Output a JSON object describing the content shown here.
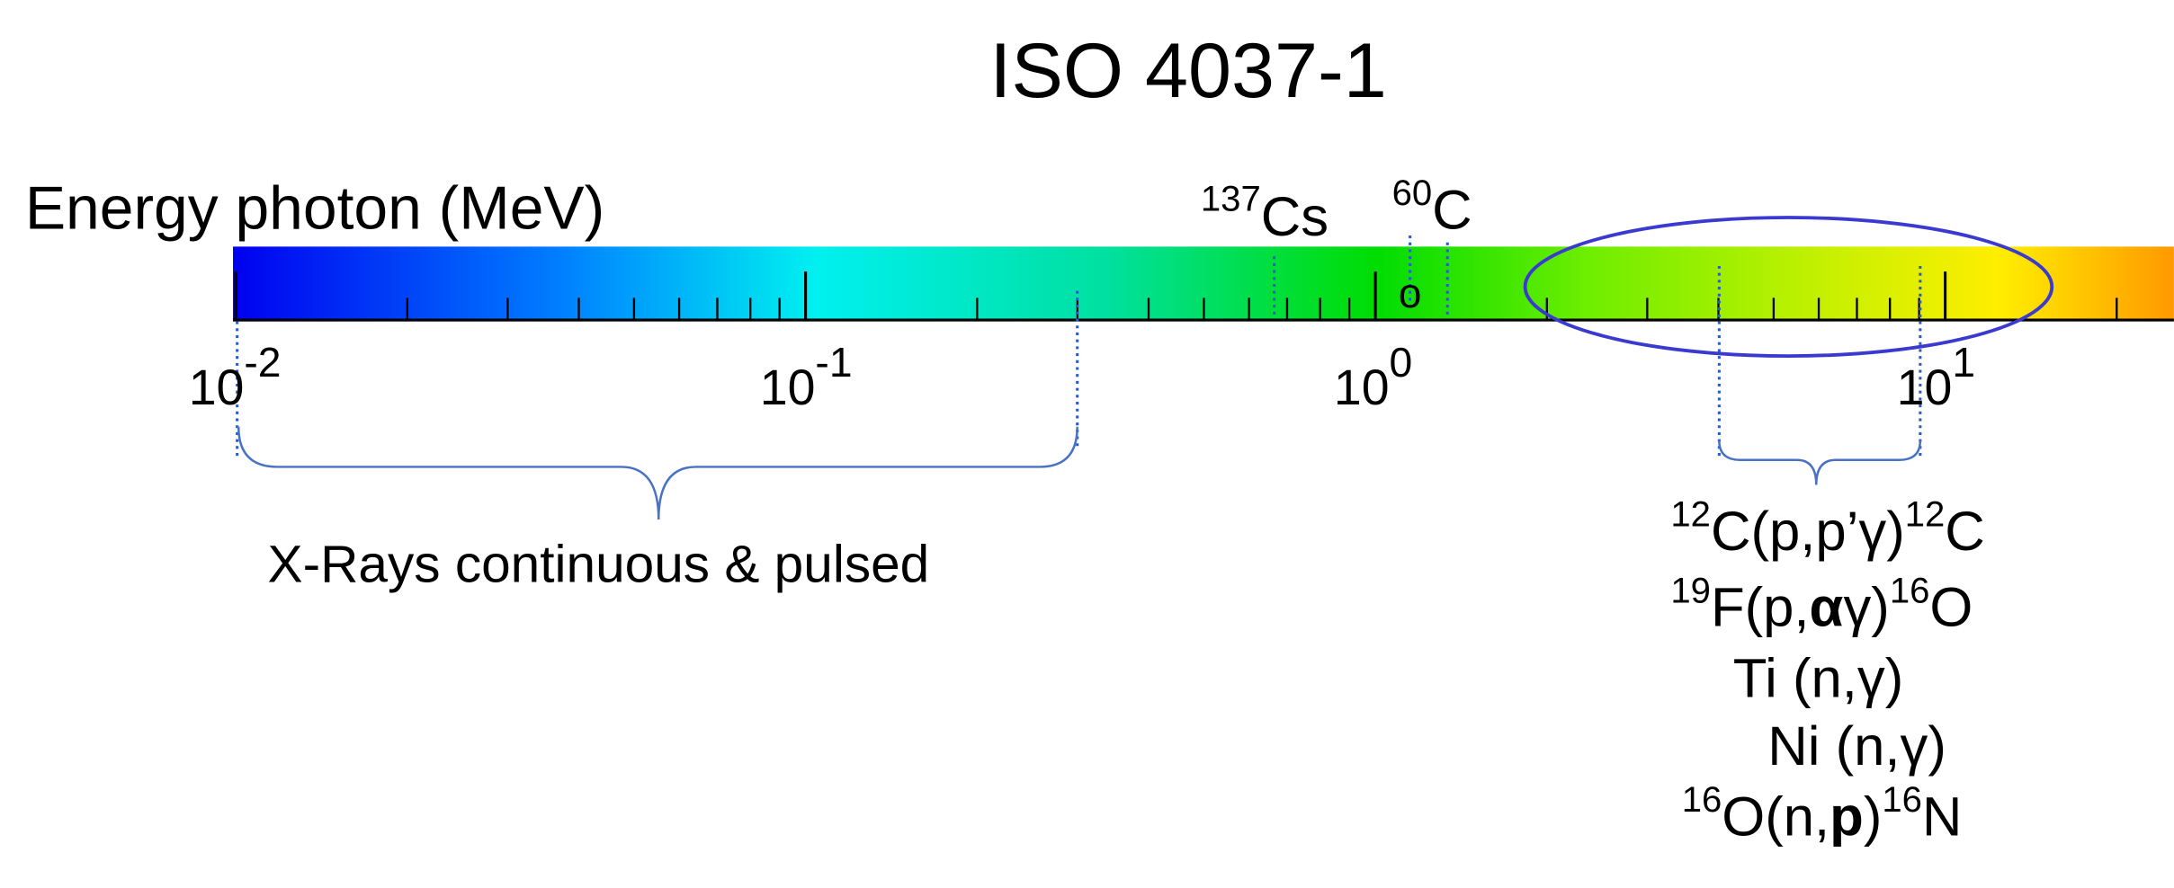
{
  "title": "ISO 4037-1",
  "axis_label": "Energy photon (MeV)",
  "markers": [
    {
      "mass": "137",
      "symbol": "Cs"
    },
    {
      "mass": "60",
      "symbol": "C"
    }
  ],
  "marker_point": "o",
  "ticks": [
    {
      "base": "10",
      "exponent": "-2"
    },
    {
      "base": "10",
      "exponent": "-1"
    },
    {
      "base": "10",
      "exponent": "0"
    },
    {
      "base": "10",
      "exponent": "1"
    }
  ],
  "brackets": [
    {
      "label": "X-Rays continuous & pulsed"
    }
  ],
  "reactions": [
    [
      "12",
      "C(p,p’γ)",
      "12",
      "C"
    ],
    [
      "19",
      "F(p,",
      "α",
      "γ)",
      "16",
      "O"
    ],
    [
      "Ti (n,γ)"
    ],
    [
      "Ni (n,γ)"
    ],
    [
      "16",
      "O(n,",
      "p",
      ")",
      "16",
      "N"
    ]
  ]
}
